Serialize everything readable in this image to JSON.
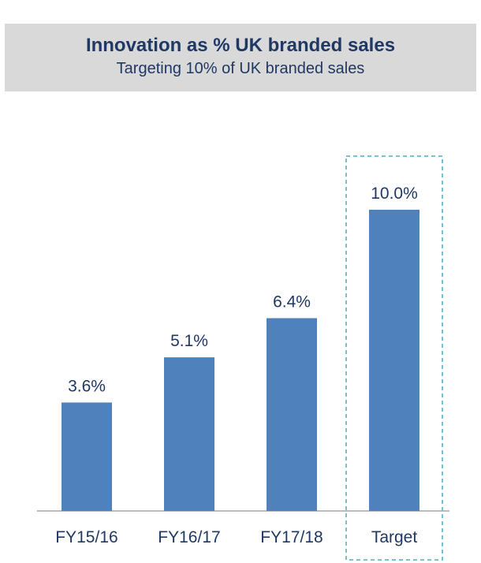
{
  "header": {
    "title": "Innovation as % UK branded sales",
    "subtitle": "Targeting 10% of UK branded sales"
  },
  "colors": {
    "header_bg": "#d9d9d9",
    "title_text": "#1f3864",
    "bar": "#4f81bd",
    "axis": "#a6a6a6",
    "highlight_border": "#4bacc6"
  },
  "chart_data": {
    "type": "bar",
    "categories": [
      "FY15/16",
      "FY16/17",
      "FY17/18",
      "Target"
    ],
    "values": [
      3.6,
      5.1,
      6.4,
      10.0
    ],
    "data_labels": [
      "3.6%",
      "5.1%",
      "6.4%",
      "10.0%"
    ],
    "ylim": [
      0,
      10
    ],
    "highlighted_category": "Target",
    "grid": false,
    "legend": "none"
  }
}
